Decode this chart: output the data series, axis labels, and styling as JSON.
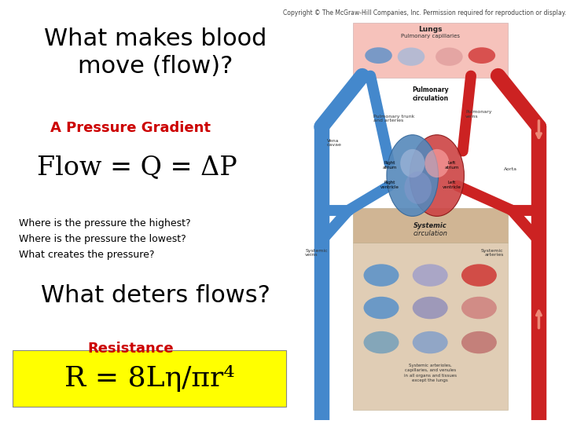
{
  "background_color": "#ffffff",
  "copyright_text": "Copyright © The McGraw-Hill Companies, Inc. Permission required for reproduction or display.",
  "copyright_fontsize": 5.5,
  "copyright_color": "#444444",
  "title_text": "What makes blood\nmove (flow)?",
  "title_fontsize": 22,
  "title_color": "#000000",
  "subtitle_text": "A Pressure Gradient",
  "subtitle_fontsize": 13,
  "subtitle_color": "#cc0000",
  "flow_text": "Flow = Q = ΔP",
  "flow_fontsize": 24,
  "flow_color": "#000000",
  "questions_text": "Where is the pressure the highest?\nWhere is the pressure the lowest?\nWhat creates the pressure?",
  "questions_fontsize": 9,
  "questions_color": "#000000",
  "deters_text": "What deters flows?",
  "deters_fontsize": 22,
  "deters_color": "#000000",
  "resistance_text": "Resistance",
  "resistance_fontsize": 13,
  "resistance_color": "#cc0000",
  "formula_text": "R = 8Lη/πr⁴",
  "formula_fontsize": 26,
  "formula_color": "#000000",
  "formula_bg": "#ffff00",
  "blue_color": "#4488cc",
  "red_color": "#cc2222",
  "pink_bg": "#f5b8b0",
  "tan_bg": "#c8a882",
  "tan_bg2": "#d4b896"
}
